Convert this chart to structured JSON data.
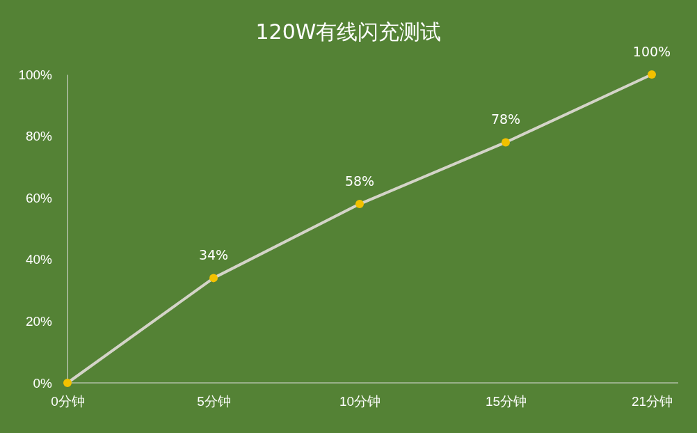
{
  "chart_data": {
    "type": "line",
    "title": "120W有线闪充测试",
    "categories": [
      "0分钟",
      "5分钟",
      "10分钟",
      "15分钟",
      "21分钟"
    ],
    "series": [
      {
        "color": "#d4d4c8",
        "values": [
          0,
          34,
          58,
          78,
          100
        ],
        "value_labels": [
          null,
          "34%",
          "58%",
          "78%",
          "100%"
        ]
      }
    ],
    "ylim": [
      0,
      100
    ],
    "yticks": [
      {
        "value": 0,
        "label": "0%"
      },
      {
        "value": 20,
        "label": "20%"
      },
      {
        "value": 40,
        "label": "40%"
      },
      {
        "value": 60,
        "label": "60%"
      },
      {
        "value": 80,
        "label": "80%"
      },
      {
        "value": 100,
        "label": "100%"
      }
    ],
    "marker": "circle",
    "line_style": "solid",
    "grid": false
  }
}
